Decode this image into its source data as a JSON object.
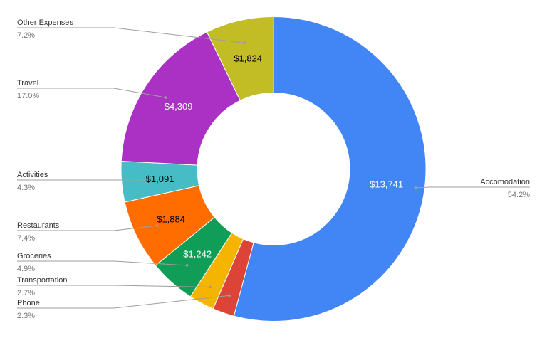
{
  "chart_data": {
    "type": "pie",
    "donut": true,
    "title": "",
    "legend": "none",
    "slices": [
      {
        "label": "Accomodation",
        "value": 13741,
        "display_value": "$13,741",
        "percent_label": "54.2%",
        "color": "#4285f4",
        "value_color": "#ffffff"
      },
      {
        "label": "Phone",
        "value": 583,
        "display_value": "",
        "percent_label": "2.3%",
        "color": "#db4437",
        "value_color": "#ffffff"
      },
      {
        "label": "Transportation",
        "value": 684,
        "display_value": "",
        "percent_label": "2.7%",
        "color": "#f4b400",
        "value_color": "#000000"
      },
      {
        "label": "Groceries",
        "value": 1242,
        "display_value": "$1,242",
        "percent_label": "4.9%",
        "color": "#0f9d58",
        "value_color": "#ffffff"
      },
      {
        "label": "Restaurants",
        "value": 1884,
        "display_value": "$1,884",
        "percent_label": "7.4%",
        "color": "#ff6d00",
        "value_color": "#000000"
      },
      {
        "label": "Activities",
        "value": 1091,
        "display_value": "$1,091",
        "percent_label": "4.3%",
        "color": "#46bdc6",
        "value_color": "#000000"
      },
      {
        "label": "Travel",
        "value": 4309,
        "display_value": "$4,309",
        "percent_label": "17.0%",
        "color": "#ab30c4",
        "value_color": "#ffffff"
      },
      {
        "label": "Other Expenses",
        "value": 1824,
        "display_value": "$1,824",
        "percent_label": "7.2%",
        "color": "#c2bd24",
        "value_color": "#000000"
      }
    ]
  }
}
